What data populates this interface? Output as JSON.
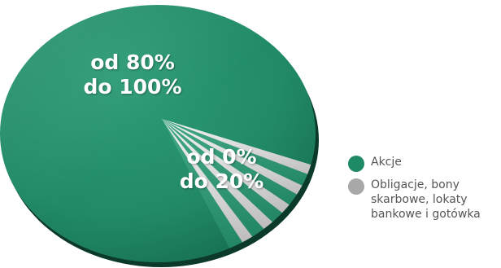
{
  "chart_data": {
    "type": "pie",
    "title": "",
    "slices": [
      {
        "name": "Akcje",
        "label_lines": [
          "od 80%",
          "do 100%"
        ],
        "range": [
          80,
          100
        ],
        "color": "#1e8a66"
      },
      {
        "name": "Obligacje, bony skarbowe, lokaty bankowe i gotówka",
        "label_lines": [
          "od 0%",
          "do 20%"
        ],
        "range": [
          0,
          20
        ],
        "color": "#bfbfbf"
      }
    ],
    "legend": {
      "position": "right",
      "items": [
        {
          "lines": [
            "Akcje"
          ],
          "color": "#1e8a66"
        },
        {
          "lines": [
            "Obligacje, bony",
            "skarbowe, lokaty",
            "bankowe i gotówka"
          ],
          "color": "#a8a8a8"
        }
      ]
    }
  }
}
